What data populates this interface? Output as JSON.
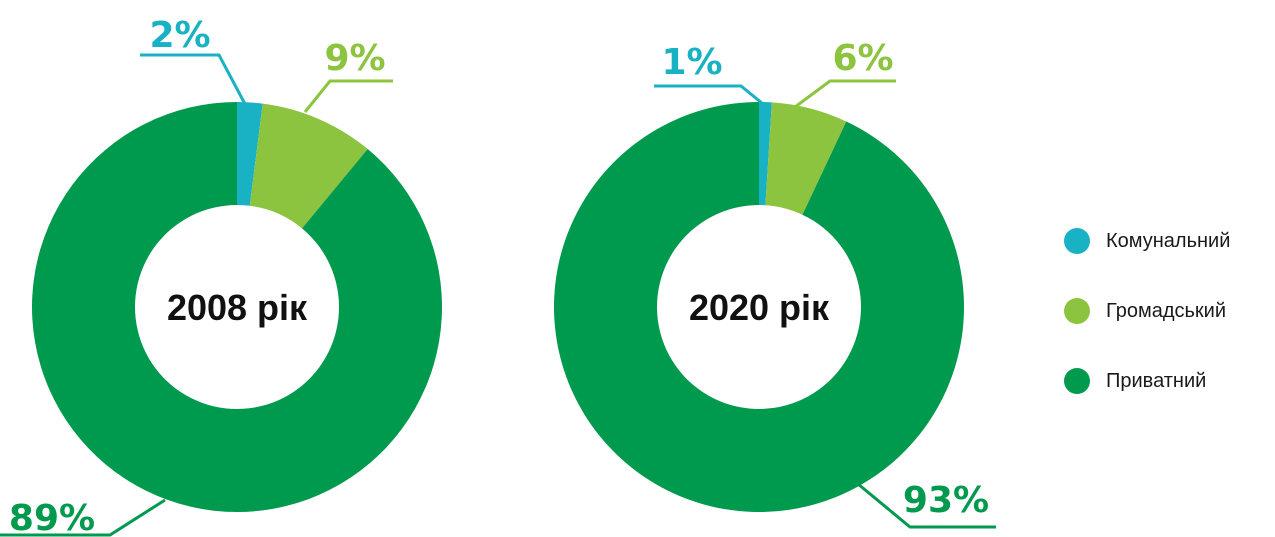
{
  "colors": {
    "Комунальний": "#18b2c4",
    "Громадський": "#8cc43f",
    "Приватний": "#009a4e"
  },
  "legend": {
    "items": [
      {
        "label": "Комунальний",
        "color": "#18b2c4"
      },
      {
        "label": "Громадський",
        "color": "#8cc43f"
      },
      {
        "label": "Приватний",
        "color": "#009a4e"
      }
    ],
    "placement": "right"
  },
  "chart_data": [
    {
      "type": "pie",
      "center_label": "2008 рік",
      "categories": [
        "Комунальний",
        "Громадський",
        "Приватний"
      ],
      "values": [
        2,
        9,
        89
      ],
      "labels": [
        "2%",
        "9%",
        "89%"
      ]
    },
    {
      "type": "pie",
      "center_label": "2020 рік",
      "categories": [
        "Комунальний",
        "Громадський",
        "Приватний"
      ],
      "values": [
        1,
        6,
        93
      ],
      "labels": [
        "1%",
        "6%",
        "93%"
      ]
    }
  ]
}
